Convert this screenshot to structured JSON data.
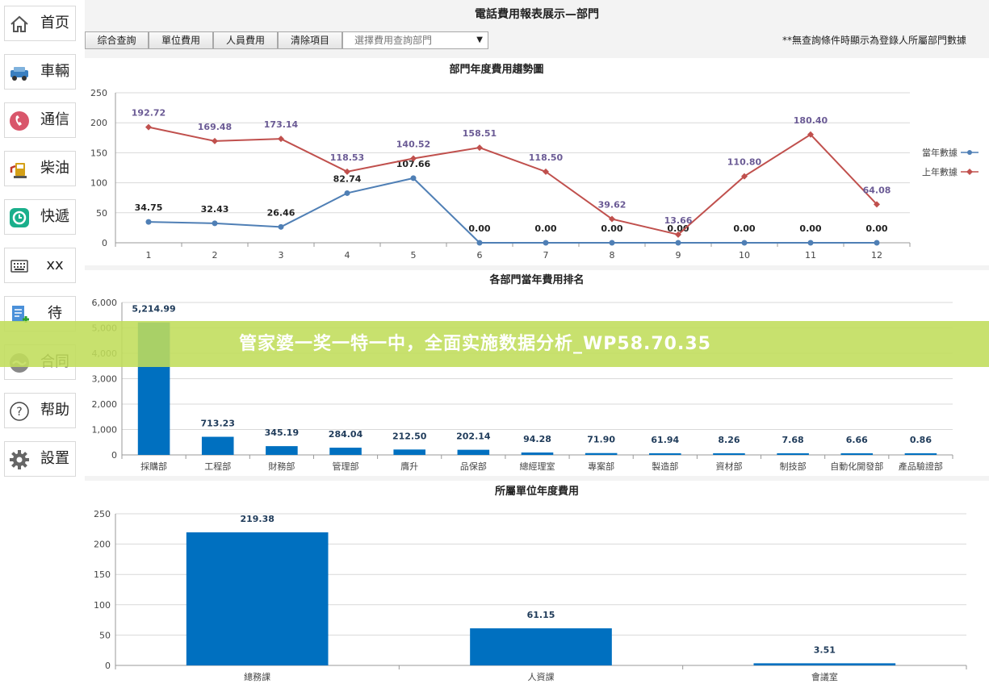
{
  "sidebar": {
    "items": [
      {
        "label": "首页",
        "icon": "home-icon"
      },
      {
        "label": "車輛",
        "icon": "car-icon"
      },
      {
        "label": "通信",
        "icon": "phone-icon"
      },
      {
        "label": "柴油",
        "icon": "fuel-pump-icon"
      },
      {
        "label": "快遞",
        "icon": "delivery-icon"
      },
      {
        "label": "xx",
        "icon": "calculator-icon"
      },
      {
        "label": "待",
        "icon": "document-icon"
      },
      {
        "label": "合同",
        "icon": "contract-icon"
      },
      {
        "label": "帮助",
        "icon": "help-icon"
      },
      {
        "label": "設置",
        "icon": "gear-icon"
      }
    ]
  },
  "header": {
    "title": "電話費用報表展示—部門",
    "buttons": [
      "综合查詢",
      "單位費用",
      "人員費用",
      "清除項目"
    ],
    "select_placeholder": "選擇費用查詢部門",
    "note": "**無查詢條件時顯示為登錄人所屬部門數據"
  },
  "banner": {
    "text": "管家婆一奖一特一中，全面实施数据分析_WP58.70.35"
  },
  "colors": {
    "current_year": "#4f7fb5",
    "last_year": "#c0504d",
    "bar": "#0070c0",
    "grid": "#d9d9d9"
  },
  "chart_data": [
    {
      "type": "line",
      "title": "部門年度費用趨勢圖",
      "x": [
        "1",
        "2",
        "3",
        "4",
        "5",
        "6",
        "7",
        "8",
        "9",
        "10",
        "11",
        "12"
      ],
      "ylim": [
        0,
        250
      ],
      "yticks": [
        "0",
        "50",
        "100",
        "150",
        "200",
        "250"
      ],
      "legend_position": "right",
      "series": [
        {
          "name": "當年數據",
          "values": [
            34.75,
            32.43,
            26.46,
            82.74,
            107.66,
            0.0,
            0.0,
            0.0,
            0.0,
            0.0,
            0.0,
            0.0
          ],
          "labels": [
            "34.75",
            "32.43",
            "26.46",
            "82.74",
            "107.66",
            "0.00",
            "0.00",
            "0.00",
            "0.00",
            "0.00",
            "0.00",
            "0.00"
          ]
        },
        {
          "name": "上年數據",
          "values": [
            192.72,
            169.48,
            173.14,
            118.53,
            140.52,
            158.51,
            118.5,
            39.62,
            13.66,
            110.8,
            180.4,
            64.08
          ],
          "labels": [
            "192.72",
            "169.48",
            "173.14",
            "118.53",
            "140.52",
            "158.51",
            "118.50",
            "39.62",
            "13.66",
            "110.80",
            "180.40",
            "64.08"
          ]
        }
      ]
    },
    {
      "type": "bar",
      "title": "各部門當年費用排名",
      "categories": [
        "採購部",
        "工程部",
        "財務部",
        "管理部",
        "膺升",
        "品保部",
        "總經理室",
        "專案部",
        "製造部",
        "資材部",
        "制技部",
        "自動化開發部",
        "產品驗證部"
      ],
      "values": [
        5214.99,
        713.23,
        345.19,
        284.04,
        212.5,
        202.14,
        94.28,
        71.9,
        61.94,
        8.26,
        7.68,
        6.66,
        0.86
      ],
      "labels": [
        "5,214.99",
        "713.23",
        "345.19",
        "284.04",
        "212.50",
        "202.14",
        "94.28",
        "71.90",
        "61.94",
        "8.26",
        "7.68",
        "6.66",
        "0.86"
      ],
      "ylim": [
        0,
        6000
      ],
      "yticks": [
        "0",
        "1,000",
        "2,000",
        "3,000",
        "4,000",
        "5,000",
        "6,000"
      ]
    },
    {
      "type": "bar",
      "title": "所屬單位年度費用",
      "categories": [
        "總務課",
        "人資課",
        "會議室"
      ],
      "values": [
        219.38,
        61.15,
        3.51
      ],
      "labels": [
        "219.38",
        "61.15",
        "3.51"
      ],
      "ylim": [
        0,
        250
      ],
      "yticks": [
        "0",
        "50",
        "100",
        "150",
        "200",
        "250"
      ]
    }
  ]
}
